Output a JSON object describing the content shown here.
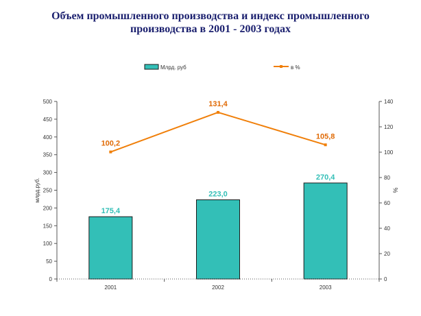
{
  "title": {
    "line1": "Объем промышленного производства и индекс промышленного",
    "line2": "производства в 2001 - 2003 годах"
  },
  "colors": {
    "title": "#1a1f6e",
    "bar_fill": "#33bfb7",
    "bar_stroke": "#1a1a1a",
    "bar_label": "#33bfb7",
    "line": "#f07f09",
    "line_label": "#e06a05",
    "axis": "#555555"
  },
  "chart_data": {
    "type": "bar",
    "categories": [
      "2001",
      "2002",
      "2003"
    ],
    "series": [
      {
        "name": "Млрд. руб",
        "kind": "bar",
        "axis": "left",
        "values": [
          175.4,
          223.0,
          270.4
        ],
        "labels": [
          "175,4",
          "223,0",
          "270,4"
        ]
      },
      {
        "name": "в %",
        "kind": "line",
        "axis": "right",
        "values": [
          100.2,
          131.4,
          105.8
        ],
        "labels": [
          "100,2",
          "131,4",
          "105,8"
        ]
      }
    ],
    "ylabel": "млрд.руб.",
    "y2label": "%",
    "ylim": [
      0,
      500
    ],
    "yticks": [
      "0",
      "50",
      "100",
      "150",
      "200",
      "250",
      "300",
      "350",
      "400",
      "450",
      "500"
    ],
    "y2lim": [
      0,
      140
    ],
    "y2ticks": [
      "0",
      "20",
      "40",
      "60",
      "80",
      "100",
      "120",
      "140"
    ],
    "legend_position": "top",
    "grid": false
  }
}
